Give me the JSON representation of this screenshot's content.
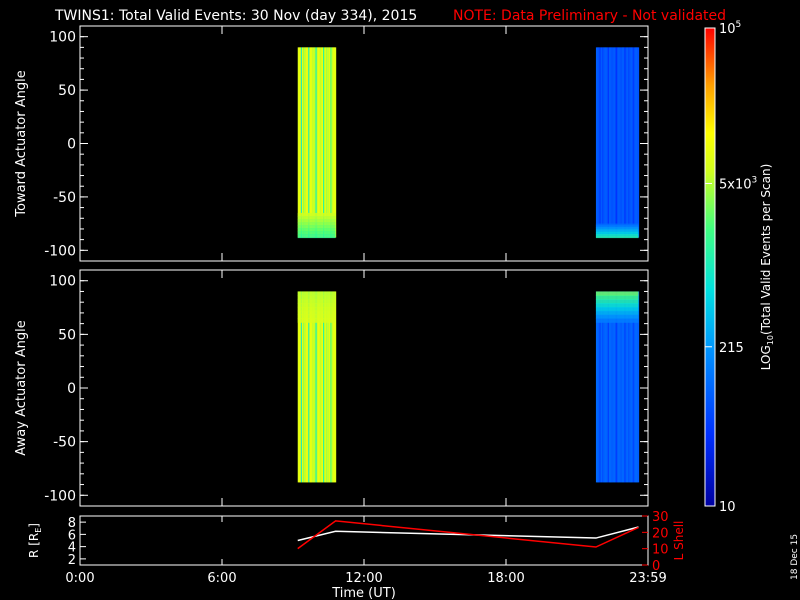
{
  "title": "TWINS1: Total Valid Events: 30 Nov (day 334), 2015",
  "note": "NOTE: Data Preliminary - Not validated",
  "stamp": "18 Dec 15",
  "colors": {
    "note": "#ff0000",
    "r_line": "#ffffff",
    "lshell_line": "#ff0000"
  },
  "colorbar": {
    "label": "LOG10(Total Valid Events per Scan)",
    "label_main": "LOG",
    "label_sub": "10",
    "label_rest": "(Total Valid Events per Scan)",
    "scale": "log",
    "range": [
      10,
      100000
    ],
    "ticks": [
      {
        "value": 100000,
        "base": "10",
        "exp": "5"
      },
      {
        "value": 5000,
        "base": "5x10",
        "exp": "3"
      },
      {
        "value": 215,
        "base": "215",
        "exp": ""
      },
      {
        "value": 10,
        "base": "10",
        "exp": ""
      }
    ]
  },
  "chart_data": [
    {
      "type": "heatmap",
      "ylabel": "Toward Actuator Angle",
      "ylim": [
        -110,
        110
      ],
      "yticks": [
        100,
        50,
        0,
        -50,
        -100
      ],
      "xlim": [
        0,
        24
      ],
      "y_extent": [
        -88,
        90
      ],
      "blocks": [
        {
          "t_start": 9.2,
          "t_end": 10.8,
          "level": 0.72,
          "bottom_level": 0.55,
          "bottom_from": -65
        },
        {
          "t_start": 21.8,
          "t_end": 23.6,
          "level": 0.22,
          "bottom_level": 0.52,
          "bottom_from": -75
        }
      ]
    },
    {
      "type": "heatmap",
      "ylabel": "Away Actuator Angle",
      "ylim": [
        -110,
        110
      ],
      "yticks": [
        100,
        50,
        0,
        -50,
        -100
      ],
      "xlim": [
        0,
        24
      ],
      "y_extent": [
        -88,
        90
      ],
      "blocks": [
        {
          "t_start": 9.2,
          "t_end": 10.8,
          "level": 0.72,
          "top_level": 0.68,
          "top_from": 80
        },
        {
          "t_start": 21.8,
          "t_end": 23.6,
          "level": 0.24,
          "top_level": 0.62,
          "top_from": 80
        }
      ]
    },
    {
      "type": "line",
      "xlabel": "Time (UT)",
      "xlim": [
        0,
        24
      ],
      "xticks": [
        {
          "value": 0,
          "label": "0:00"
        },
        {
          "value": 6,
          "label": "6:00"
        },
        {
          "value": 12,
          "label": "12:00"
        },
        {
          "value": 18,
          "label": "18:00"
        },
        {
          "value": 24,
          "label": "23:59"
        }
      ],
      "ylabel": "R [RE]",
      "ylabel_main": "R [R",
      "ylabel_sub": "E",
      "ylabel_end": "]",
      "ylim": [
        1,
        9
      ],
      "yticks": [
        8,
        6,
        4,
        2
      ],
      "y2label": "L Shell",
      "y2lim": [
        0,
        30
      ],
      "y2ticks": [
        30,
        20,
        10,
        0
      ],
      "series": [
        {
          "axis": "left",
          "x": [
            9.2,
            10.8,
            21.8,
            23.6
          ],
          "y": [
            5.0,
            6.5,
            5.4,
            7.2
          ]
        },
        {
          "axis": "right",
          "x": [
            9.2,
            10.8,
            21.8,
            23.6
          ],
          "y": [
            10,
            27,
            11,
            23
          ]
        }
      ]
    }
  ]
}
